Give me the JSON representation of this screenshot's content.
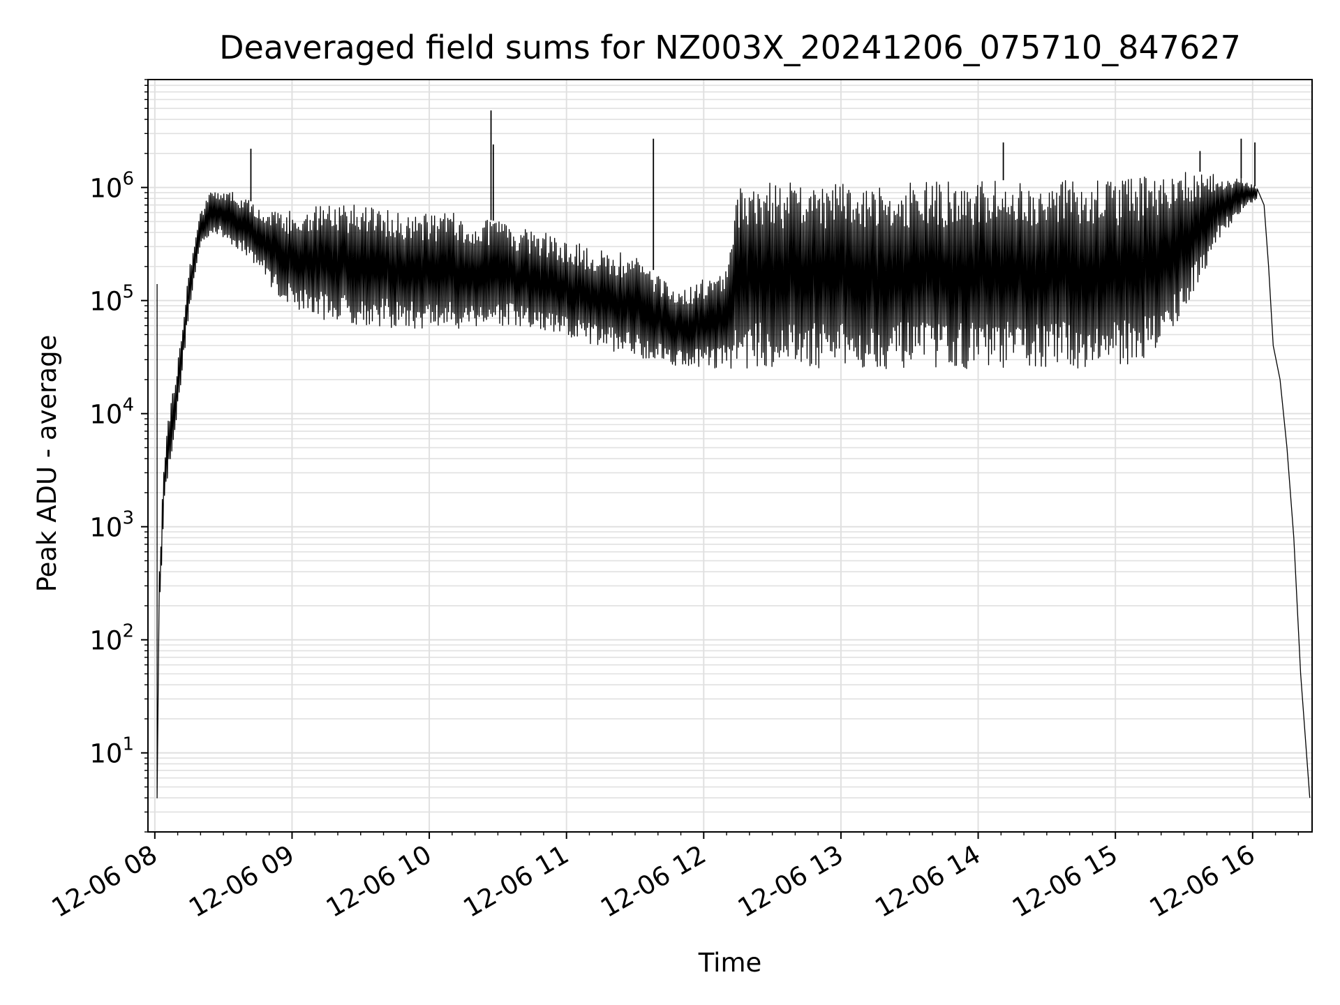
{
  "chart_data": {
    "type": "line",
    "title": "Deaveraged field sums for NZ003X_20241206_075710_847627",
    "xlabel": "Time",
    "ylabel": "Peak ADU - average",
    "y_scale": "log",
    "ylim": [
      2,
      9000000
    ],
    "xlim": [
      "2024-12-06 07:57",
      "2024-12-06 16:26"
    ],
    "x_ticks": [
      {
        "t": "2024-12-06 08:00",
        "label": "12-06 08"
      },
      {
        "t": "2024-12-06 09:00",
        "label": "12-06 09"
      },
      {
        "t": "2024-12-06 10:00",
        "label": "12-06 10"
      },
      {
        "t": "2024-12-06 11:00",
        "label": "12-06 11"
      },
      {
        "t": "2024-12-06 12:00",
        "label": "12-06 12"
      },
      {
        "t": "2024-12-06 13:00",
        "label": "12-06 13"
      },
      {
        "t": "2024-12-06 14:00",
        "label": "12-06 14"
      },
      {
        "t": "2024-12-06 15:00",
        "label": "12-06 15"
      },
      {
        "t": "2024-12-06 16:00",
        "label": "12-06 16"
      }
    ],
    "y_ticks": [
      {
        "base": "10",
        "exp": "1",
        "value": 10
      },
      {
        "base": "10",
        "exp": "2",
        "value": 100
      },
      {
        "base": "10",
        "exp": "3",
        "value": 1000
      },
      {
        "base": "10",
        "exp": "4",
        "value": 10000
      },
      {
        "base": "10",
        "exp": "5",
        "value": 100000
      },
      {
        "base": "10",
        "exp": "6",
        "value": 1000000
      }
    ],
    "grid": true,
    "line_color": "#000000",
    "grid_color": "#e0e0e0",
    "series": [
      {
        "envelope": [
          {
            "t": "2024-12-06 08:02",
            "low": 150,
            "high": 400
          },
          {
            "t": "2024-12-06 08:04",
            "low": 1500,
            "high": 4000
          },
          {
            "t": "2024-12-06 08:06",
            "low": 3000,
            "high": 10000
          },
          {
            "t": "2024-12-06 08:10",
            "low": 10000,
            "high": 30000
          },
          {
            "t": "2024-12-06 08:15",
            "low": 80000,
            "high": 200000
          },
          {
            "t": "2024-12-06 08:20",
            "low": 300000,
            "high": 600000
          },
          {
            "t": "2024-12-06 08:25",
            "low": 400000,
            "high": 1000000
          },
          {
            "t": "2024-12-06 08:35",
            "low": 300000,
            "high": 900000
          },
          {
            "t": "2024-12-06 08:45",
            "low": 200000,
            "high": 700000
          },
          {
            "t": "2024-12-06 08:55",
            "low": 100000,
            "high": 600000
          },
          {
            "t": "2024-12-06 09:10",
            "low": 70000,
            "high": 700000
          },
          {
            "t": "2024-12-06 09:30",
            "low": 60000,
            "high": 700000
          },
          {
            "t": "2024-12-06 09:50",
            "low": 55000,
            "high": 600000
          },
          {
            "t": "2024-12-06 10:10",
            "low": 55000,
            "high": 600000
          },
          {
            "t": "2024-12-06 10:30",
            "low": 60000,
            "high": 500000
          },
          {
            "t": "2024-12-06 10:50",
            "low": 50000,
            "high": 400000
          },
          {
            "t": "2024-12-06 11:10",
            "low": 40000,
            "high": 300000
          },
          {
            "t": "2024-12-06 11:30",
            "low": 32000,
            "high": 250000
          },
          {
            "t": "2024-12-06 11:50",
            "low": 26000,
            "high": 120000
          },
          {
            "t": "2024-12-06 12:10",
            "low": 25000,
            "high": 200000
          },
          {
            "t": "2024-12-06 12:15",
            "low": 25000,
            "high": 1100000
          },
          {
            "t": "2024-12-06 13:00",
            "low": 25000,
            "high": 1100000
          },
          {
            "t": "2024-12-06 14:00",
            "low": 25000,
            "high": 1150000
          },
          {
            "t": "2024-12-06 15:00",
            "low": 25000,
            "high": 1200000
          },
          {
            "t": "2024-12-06 15:20",
            "low": 35000,
            "high": 1300000
          },
          {
            "t": "2024-12-06 15:35",
            "low": 120000,
            "high": 1400000
          },
          {
            "t": "2024-12-06 15:45",
            "low": 350000,
            "high": 1300000
          },
          {
            "t": "2024-12-06 15:55",
            "low": 600000,
            "high": 1200000
          },
          {
            "t": "2024-12-06 16:02",
            "low": 800000,
            "high": 1000000
          }
        ],
        "edge_points": [
          {
            "t": "2024-12-06 08:01",
            "y": 140000
          },
          {
            "t": "2024-12-06 08:01",
            "y": 4
          },
          {
            "t": "2024-12-06 08:02",
            "y": 400
          },
          {
            "t": "2024-12-06 08:04",
            "y": 3000
          },
          {
            "t": "2024-12-06 16:05",
            "y": 700000
          },
          {
            "t": "2024-12-06 16:07",
            "y": 200000
          },
          {
            "t": "2024-12-06 16:09",
            "y": 40000
          },
          {
            "t": "2024-12-06 16:12",
            "y": 20000
          },
          {
            "t": "2024-12-06 16:15",
            "y": 5000
          },
          {
            "t": "2024-12-06 16:18",
            "y": 800
          },
          {
            "t": "2024-12-06 16:21",
            "y": 50
          },
          {
            "t": "2024-12-06 16:25",
            "y": 4
          }
        ],
        "spikes": [
          {
            "t": "2024-12-06 08:42",
            "y": 2200000
          },
          {
            "t": "2024-12-06 10:27",
            "y": 4800000
          },
          {
            "t": "2024-12-06 10:28",
            "y": 2400000
          },
          {
            "t": "2024-12-06 11:38",
            "y": 2700000
          },
          {
            "t": "2024-12-06 14:11",
            "y": 2500000
          },
          {
            "t": "2024-12-06 15:37",
            "y": 2100000
          },
          {
            "t": "2024-12-06 15:55",
            "y": 2700000
          },
          {
            "t": "2024-12-06 16:01",
            "y": 2500000
          }
        ]
      }
    ]
  }
}
